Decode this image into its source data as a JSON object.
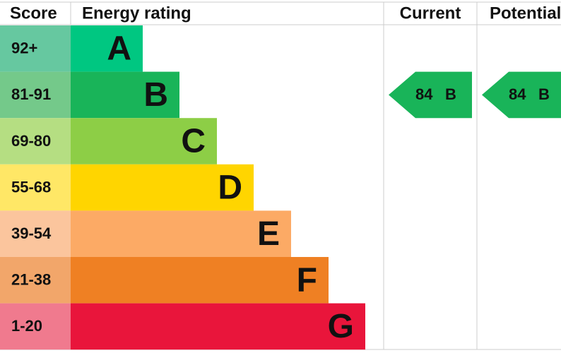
{
  "header": {
    "score": "Score",
    "rating": "Energy rating",
    "current": "Current",
    "potential": "Potential"
  },
  "bands": [
    {
      "score": "92+",
      "letter": "A"
    },
    {
      "score": "81-91",
      "letter": "B"
    },
    {
      "score": "69-80",
      "letter": "C"
    },
    {
      "score": "55-68",
      "letter": "D"
    },
    {
      "score": "39-54",
      "letter": "E"
    },
    {
      "score": "21-38",
      "letter": "F"
    },
    {
      "score": "1-20",
      "letter": "G"
    }
  ],
  "current": {
    "score": "84",
    "band": "B"
  },
  "potential": {
    "score": "84",
    "band": "B"
  }
}
